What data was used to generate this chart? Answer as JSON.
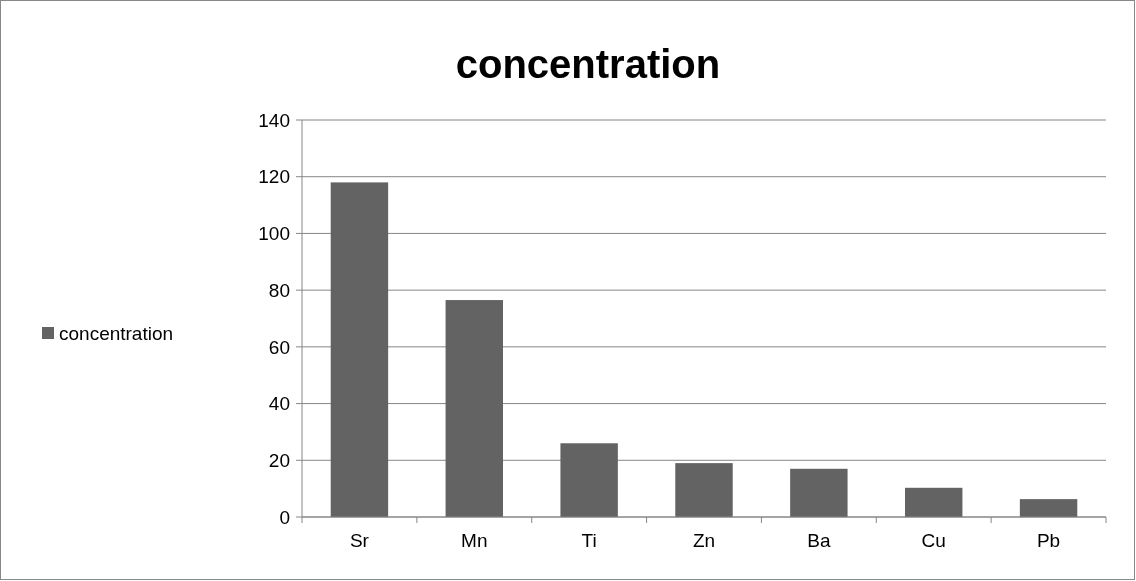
{
  "chart_data": {
    "type": "bar",
    "title": "concentration",
    "categories": [
      "Sr",
      "Mn",
      "Ti",
      "Zn",
      "Ba",
      "Cu",
      "Pb"
    ],
    "series": [
      {
        "name": "concentration",
        "color": "#636363",
        "values": [
          118,
          76.5,
          26,
          19,
          17,
          10.3,
          6.3
        ]
      }
    ],
    "ylim": [
      0,
      140
    ],
    "yticks": [
      0,
      20,
      40,
      60,
      80,
      100,
      120,
      140
    ],
    "grid": "y",
    "legend": "left"
  }
}
